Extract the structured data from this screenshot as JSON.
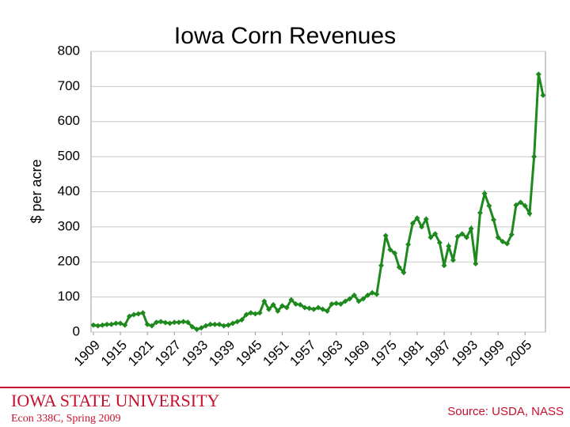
{
  "chart_data": {
    "type": "line",
    "title": "Iowa Corn Revenues",
    "y_label": "$ per acre",
    "categories": [
      "1909",
      null,
      null,
      null,
      null,
      null,
      "1915",
      null,
      null,
      null,
      null,
      null,
      "1921",
      null,
      null,
      null,
      null,
      null,
      "1927",
      null,
      null,
      null,
      null,
      null,
      "1933",
      null,
      null,
      null,
      null,
      null,
      "1939",
      null,
      null,
      null,
      null,
      null,
      "1945",
      null,
      null,
      null,
      null,
      null,
      "1951",
      null,
      null,
      null,
      null,
      null,
      "1957",
      null,
      null,
      null,
      null,
      null,
      "1963",
      null,
      null,
      null,
      null,
      null,
      "1969",
      null,
      null,
      null,
      null,
      null,
      "1975",
      null,
      null,
      null,
      null,
      null,
      "1981",
      null,
      null,
      null,
      null,
      null,
      "1987",
      null,
      null,
      null,
      null,
      null,
      "1993",
      null,
      null,
      null,
      null,
      null,
      "1999",
      null,
      null,
      null,
      null,
      null,
      "2005",
      null,
      null,
      null,
      null
    ],
    "series": [
      {
        "name": "Iowa corn revenue",
        "color": "#1e8a1e",
        "values": [
          20,
          18,
          20,
          22,
          22,
          25,
          25,
          20,
          45,
          50,
          52,
          55,
          22,
          18,
          28,
          30,
          27,
          25,
          28,
          28,
          30,
          28,
          15,
          8,
          12,
          18,
          22,
          22,
          22,
          18,
          20,
          25,
          30,
          35,
          50,
          55,
          52,
          55,
          88,
          65,
          78,
          60,
          75,
          70,
          92,
          80,
          78,
          70,
          68,
          65,
          70,
          65,
          60,
          80,
          82,
          80,
          88,
          95,
          105,
          88,
          95,
          105,
          112,
          108,
          190,
          275,
          235,
          225,
          185,
          170,
          250,
          310,
          325,
          300,
          322,
          270,
          280,
          255,
          190,
          245,
          205,
          272,
          280,
          270,
          295,
          195,
          340,
          395,
          360,
          320,
          270,
          258,
          252,
          278,
          362,
          370,
          360,
          338,
          500,
          735,
          675
        ]
      }
    ],
    "ylim": [
      0,
      800
    ],
    "yticks": [
      0,
      100,
      200,
      300,
      400,
      500,
      600,
      700,
      800
    ],
    "grid": true
  },
  "footer": {
    "university": "Iowa State University",
    "course": "Econ 338C, Spring 2009",
    "source": "Source: USDA, NASS"
  }
}
